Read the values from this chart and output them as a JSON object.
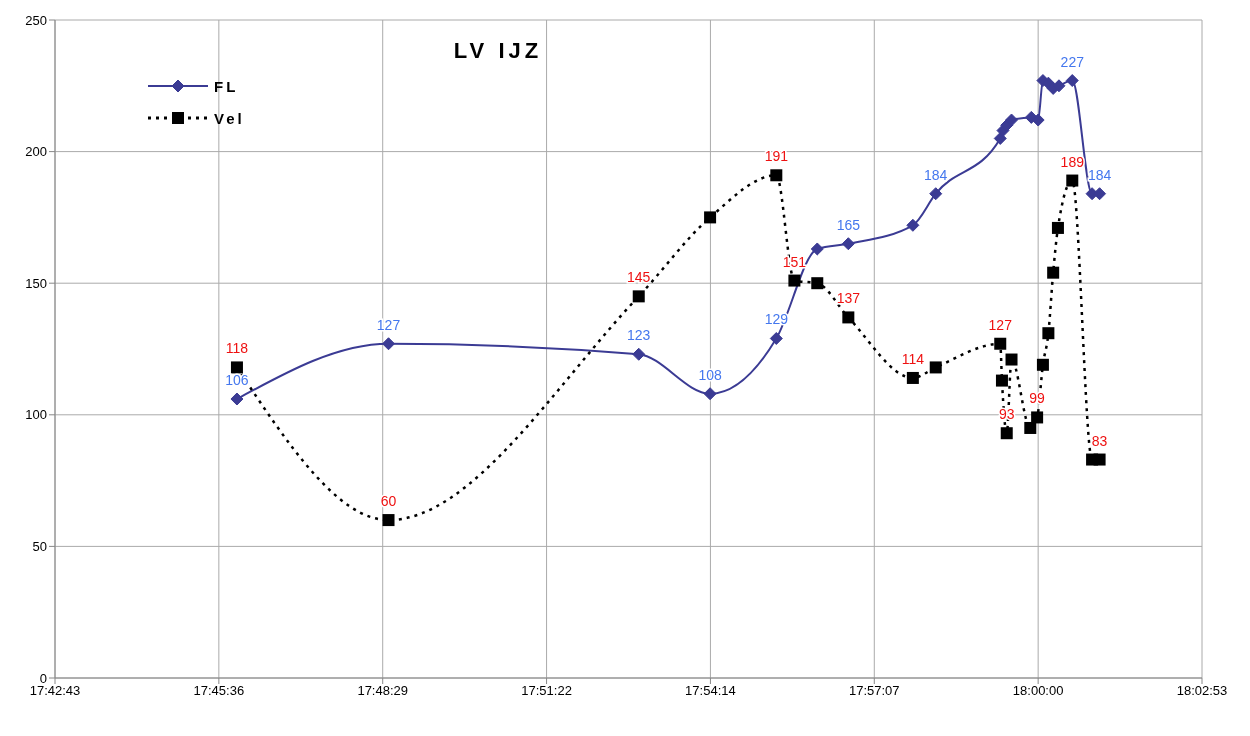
{
  "chart_data": {
    "type": "line",
    "title": "LV IJZ",
    "xlim": [
      17.712,
      18.048
    ],
    "xticks": [
      {
        "value": 17.712,
        "label": "17:42:43"
      },
      {
        "value": 17.76,
        "label": "17:45:36"
      },
      {
        "value": 17.808,
        "label": "17:48:29"
      },
      {
        "value": 17.856,
        "label": "17:51:22"
      },
      {
        "value": 17.904,
        "label": "17:54:14"
      },
      {
        "value": 17.952,
        "label": "17:57:07"
      },
      {
        "value": 18.0,
        "label": "18:00:00"
      },
      {
        "value": 18.048,
        "label": "18:02:53"
      }
    ],
    "ylim": [
      0,
      250
    ],
    "yticks": [
      0,
      50,
      100,
      150,
      200,
      250
    ],
    "grid": true,
    "legend": "top left",
    "series": [
      {
        "name": "FL",
        "color": "#3b3b94",
        "marker": "diamond",
        "line_style": "solid",
        "x": [
          17.7653,
          17.8097,
          17.883,
          17.9039,
          17.9233,
          17.9353,
          17.9444,
          17.9633,
          17.97,
          17.9889,
          17.9897,
          17.9908,
          17.9922,
          17.998,
          18.0,
          18.0014,
          18.003,
          18.0044,
          18.0061,
          18.01,
          18.0158,
          18.018
        ],
        "values": [
          106,
          127,
          123,
          108,
          129,
          163,
          165,
          172,
          184,
          205,
          208,
          210,
          212,
          213,
          212,
          227,
          226,
          224,
          225,
          227,
          184,
          184
        ],
        "value_labels": [
          "106",
          "127",
          "123",
          "108",
          "129",
          null,
          "165",
          null,
          "184",
          null,
          null,
          null,
          null,
          null,
          null,
          null,
          null,
          null,
          null,
          "227",
          null,
          "184"
        ]
      },
      {
        "name": "Vel",
        "color": "#000000",
        "marker": "square",
        "line_style": "dotted",
        "x": [
          17.7653,
          17.8097,
          17.883,
          17.9039,
          17.9233,
          17.9286,
          17.9353,
          17.9444,
          17.9633,
          17.97,
          17.9889,
          17.9894,
          17.9908,
          17.9922,
          17.9977,
          17.9997,
          18.0014,
          18.003,
          18.0044,
          18.0058,
          18.01,
          18.0158,
          18.018
        ],
        "values": [
          118,
          60,
          145,
          175,
          191,
          151,
          150,
          137,
          114,
          118,
          127,
          113,
          93,
          121,
          95,
          99,
          119,
          131,
          154,
          171,
          189,
          83,
          83
        ],
        "value_labels": [
          "118",
          "60",
          "145",
          null,
          "191",
          "151",
          null,
          "137",
          "114",
          null,
          "127",
          null,
          "93",
          null,
          null,
          "99",
          null,
          null,
          null,
          null,
          "189",
          null,
          "83"
        ]
      }
    ]
  }
}
